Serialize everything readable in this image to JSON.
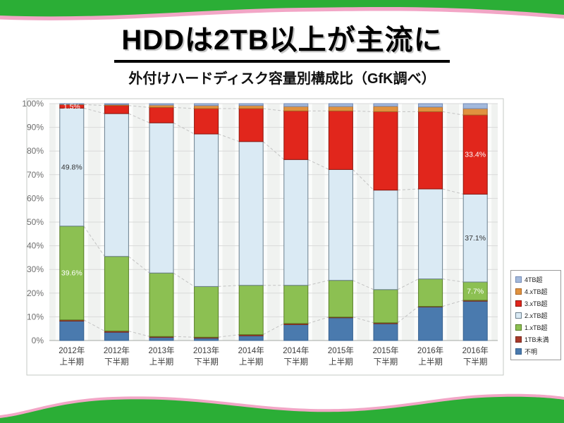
{
  "page": {
    "title": "HDDは2TB以上が主流に",
    "subtitle": "外付けハードディスク容量別構成比（GfK調べ）"
  },
  "colors": {
    "banner_green": "#2bae36",
    "banner_pink": "#f2a6c6",
    "plot_bg": "#f0f2f0",
    "plot_stripe": "#fbfcfb",
    "gridline": "#d9dad9",
    "connector": "#c3c3c3",
    "axis_text": "#6e6e6e",
    "category_text": "#3c3c3c"
  },
  "chart_data": {
    "type": "bar",
    "stacked": true,
    "percent": true,
    "title": "外付けハードディスク容量別構成比（GfK調べ）",
    "ylim": [
      0,
      100
    ],
    "y_ticks": [
      "0%",
      "10%",
      "20%",
      "30%",
      "40%",
      "50%",
      "60%",
      "70%",
      "80%",
      "90%",
      "100%"
    ],
    "legend_position": "right",
    "legend_order": "reverse-of-series",
    "categories": [
      {
        "line1": "2012年",
        "line2": "上半期"
      },
      {
        "line1": "2012年",
        "line2": "下半期"
      },
      {
        "line1": "2013年",
        "line2": "上半期"
      },
      {
        "line1": "2013年",
        "line2": "下半期"
      },
      {
        "line1": "2014年",
        "line2": "上半期"
      },
      {
        "line1": "2014年",
        "line2": "下半期"
      },
      {
        "line1": "2015年",
        "line2": "上半期"
      },
      {
        "line1": "2015年",
        "line2": "下半期"
      },
      {
        "line1": "2016年",
        "line2": "上半期"
      },
      {
        "line1": "2016年",
        "line2": "下半期"
      }
    ],
    "series": [
      {
        "name": "不明",
        "color": "#4a7aae",
        "border": "#35608f",
        "values": [
          8.2,
          3.5,
          1.3,
          1.0,
          2.0,
          6.7,
          9.6,
          7.1,
          14.2,
          16.6
        ]
      },
      {
        "name": "1TB未満",
        "color": "#a8392a",
        "border": "#7a2a1e",
        "values": [
          0.5,
          0.5,
          0.4,
          0.4,
          0.5,
          0.5,
          0.3,
          0.4,
          0.2,
          0.4
        ]
      },
      {
        "name": "1.xTB超",
        "color": "#8cc052",
        "border": "#567d25",
        "values": [
          39.6,
          31.5,
          26.8,
          21.4,
          20.8,
          16.1,
          15.5,
          14.0,
          11.6,
          7.7
        ]
      },
      {
        "name": "2.xTB超",
        "color": "#daeaf4",
        "border": "#6b7f8e",
        "values": [
          49.8,
          60.3,
          63.4,
          64.4,
          60.7,
          53.1,
          46.8,
          42.0,
          38.0,
          37.1
        ]
      },
      {
        "name": "3.xTB超",
        "color": "#e1261c",
        "border": "#8e150c",
        "values": [
          1.5,
          3.4,
          6.5,
          10.7,
          13.9,
          20.5,
          24.7,
          33.1,
          32.6,
          33.4
        ]
      },
      {
        "name": "4.xTB超",
        "color": "#e0923f",
        "border": "#aa6524",
        "values": [
          0.2,
          0.4,
          1.0,
          1.3,
          1.3,
          1.9,
          1.9,
          2.3,
          2.0,
          2.7
        ]
      },
      {
        "name": "4TB超",
        "color": "#a3b9dc",
        "border": "#7289b4",
        "values": [
          0.2,
          0.4,
          0.6,
          0.8,
          0.8,
          1.2,
          1.2,
          1.1,
          1.4,
          2.1
        ]
      }
    ],
    "annotations": [
      {
        "bar": 0,
        "series": "3.xTB超",
        "text": "1.5%",
        "color": "#ffffff"
      },
      {
        "bar": 0,
        "series": "2.xTB超",
        "text": "49.8%",
        "color": "#333333"
      },
      {
        "bar": 0,
        "series": "1.xTB超",
        "text": "39.6%",
        "color": "#ffffff"
      },
      {
        "bar": 9,
        "series": "3.xTB超",
        "text": "33.4%",
        "color": "#ffffff"
      },
      {
        "bar": 9,
        "series": "2.xTB超",
        "text": "37.1%",
        "color": "#333333"
      },
      {
        "bar": 9,
        "series": "1.xTB超",
        "text": "7.7%",
        "color": "#ffffff"
      }
    ]
  }
}
